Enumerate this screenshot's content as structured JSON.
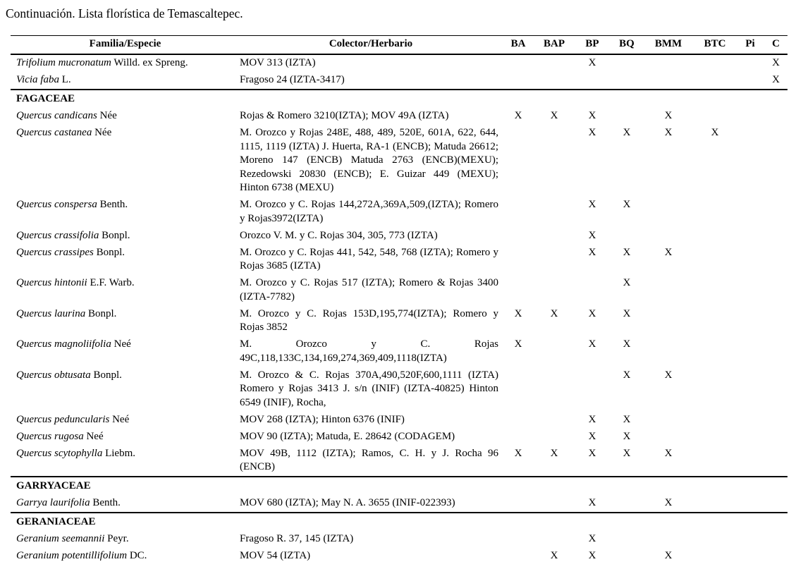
{
  "title": "Continuación. Lista florística de Temascaltepec.",
  "table": {
    "headers": [
      "Familia/Especie",
      "Colector/Herbario",
      "BA",
      "BAP",
      "BP",
      "BQ",
      "BMM",
      "BTC",
      "Pi",
      "C"
    ],
    "mark_headers": [
      "BA",
      "BAP",
      "BP",
      "BQ",
      "BMM",
      "BTC",
      "Pi",
      "C"
    ],
    "rows": [
      {
        "species": "Trifolium mucronatum",
        "author": "Willd. ex Spreng.",
        "collector": "MOV 313 (IZTA)",
        "marks": [
          "",
          "",
          "X",
          "",
          "",
          "",
          "",
          "X"
        ]
      },
      {
        "species": "Vicia faba",
        "author": "L.",
        "collector": "Fragoso 24 (IZTA-3417)",
        "marks": [
          "",
          "",
          "",
          "",
          "",
          "",
          "",
          "X"
        ]
      },
      {
        "family": "FAGACEAE"
      },
      {
        "species": "Quercus candicans",
        "author": "Née",
        "collector": "Rojas & Romero 3210(IZTA); MOV 49A (IZTA)",
        "marks": [
          "X",
          "X",
          "X",
          "",
          "X",
          "",
          "",
          ""
        ]
      },
      {
        "species": "Quercus castanea",
        "author": "Née",
        "collector": "M. Orozco y Rojas 248E, 488, 489, 520E, 601A, 622, 644, 1115, 1119 (IZTA) J. Huerta, RA-1 (ENCB); Matuda 26612; Moreno 147 (ENCB) Matuda 2763 (ENCB)(MEXU); Rezedowski 20830 (ENCB); E. Guizar 449 (MEXU); Hinton 6738 (MEXU)",
        "marks": [
          "",
          "",
          "X",
          "X",
          "X",
          "X",
          "",
          ""
        ]
      },
      {
        "species": "Quercus conspersa",
        "author": "Benth.",
        "collector": "M. Orozco y C. Rojas 144,272A,369A,509,(IZTA); Romero y Rojas3972(IZTA)",
        "marks": [
          "",
          "",
          "X",
          "X",
          "",
          "",
          "",
          ""
        ]
      },
      {
        "species": "Quercus crassifolia",
        "author": "Bonpl.",
        "collector": "Orozco V. M. y C. Rojas 304, 305, 773 (IZTA)",
        "marks": [
          "",
          "",
          "X",
          "",
          "",
          "",
          "",
          ""
        ]
      },
      {
        "species": "Quercus crassipes",
        "author": "Bonpl.",
        "collector": "M. Orozco y C. Rojas 441, 542, 548, 768 (IZTA); Romero y Rojas 3685 (IZTA)",
        "marks": [
          "",
          "",
          "X",
          "X",
          "X",
          "",
          "",
          ""
        ]
      },
      {
        "species": "Quercus hintonii",
        "author": "E.F. Warb.",
        "collector": "M. Orozco y C. Rojas 517 (IZTA); Romero & Rojas 3400 (IZTA-7782)",
        "marks": [
          "",
          "",
          "",
          "X",
          "",
          "",
          "",
          ""
        ]
      },
      {
        "species": "Quercus laurina",
        "author": "Bonpl.",
        "collector": "M. Orozco y C. Rojas 153D,195,774(IZTA); Romero y Rojas 3852",
        "marks": [
          "X",
          "X",
          "X",
          "X",
          "",
          "",
          "",
          ""
        ]
      },
      {
        "species": "Quercus magnoliifolia",
        "author": "Neé",
        "collector": "M. Orozco y C. Rojas 49C,118,133C,134,169,274,369,409,1118(IZTA)",
        "marks": [
          "X",
          "",
          "X",
          "X",
          "",
          "",
          "",
          ""
        ]
      },
      {
        "species": "Quercus obtusata",
        "author": "Bonpl.",
        "collector": "M. Orozco & C. Rojas 370A,490,520F,600,1111 (IZTA) Romero y Rojas 3413 J. s/n (INIF) (IZTA-40825) Hinton 6549 (INIF), Rocha,",
        "marks": [
          "",
          "",
          "",
          "X",
          "X",
          "",
          "",
          ""
        ]
      },
      {
        "species": "Quercus peduncularis",
        "author": "Neé",
        "collector": "MOV 268 (IZTA); Hinton 6376 (INIF)",
        "marks": [
          "",
          "",
          "X",
          "X",
          "",
          "",
          "",
          ""
        ]
      },
      {
        "species": "Quercus rugosa",
        "author": "Neé",
        "collector": "MOV 90 (IZTA); Matuda,  E. 28642 (CODAGEM)",
        "marks": [
          "",
          "",
          "X",
          "X",
          "",
          "",
          "",
          ""
        ]
      },
      {
        "species": "Quercus scytophylla",
        "author": "Liebm.",
        "collector": "MOV 49B, 1112 (IZTA); Ramos, C. H. y J. Rocha 96 (ENCB)",
        "marks": [
          "X",
          "X",
          "X",
          "X",
          "X",
          "",
          "",
          ""
        ]
      },
      {
        "family": "GARRYACEAE"
      },
      {
        "species": "Garrya laurifolia",
        "author": "Benth.",
        "collector": "MOV 680 (IZTA); May N. A. 3655 (INIF-022393)",
        "marks": [
          "",
          "",
          "X",
          "",
          "X",
          "",
          "",
          ""
        ]
      },
      {
        "family": "GERANIACEAE"
      },
      {
        "species": "Geranium seemannii",
        "author": "Peyr.",
        "collector": "Fragoso R. 37, 145 (IZTA)",
        "marks": [
          "",
          "",
          "X",
          "",
          "",
          "",
          "",
          ""
        ]
      },
      {
        "species": "Geranium potentillifolium",
        "author": "DC.",
        "collector": "MOV 54 (IZTA)",
        "marks": [
          "",
          "X",
          "X",
          "",
          "X",
          "",
          "",
          ""
        ]
      }
    ]
  }
}
